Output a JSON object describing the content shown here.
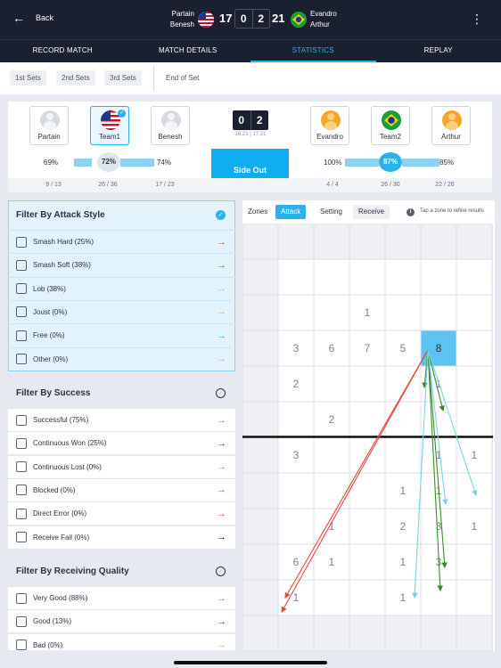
{
  "header": {
    "back_label": "Back",
    "team1_players": [
      "Partain",
      "Benesh"
    ],
    "team2_players": [
      "Evandro",
      "Arthur"
    ],
    "team1_points": "17",
    "team1_sets": "0",
    "team2_sets": "2",
    "team2_points": "21"
  },
  "tabs": [
    "RECORD MATCH",
    "MATCH DETAILS",
    "STATISTICS",
    "REPLAY"
  ],
  "set_filters": [
    "1st Sets",
    "2nd Sets",
    "3rd Sets",
    "End of Set"
  ],
  "players": {
    "left": [
      "Partain",
      "Team1",
      "Benesh"
    ],
    "right": [
      "Evandro",
      "Team2",
      "Arthur"
    ]
  },
  "set_score": {
    "left": "0",
    "right": "2",
    "times": "16:21 | 17:21"
  },
  "side_out": {
    "label": "Side Out",
    "left_pcts": [
      "69%",
      "72%",
      "74%"
    ],
    "right_pcts": [
      "100%",
      "87%",
      "85%"
    ],
    "left_fracs": [
      "9 / 13",
      "26 / 36",
      "17 / 23"
    ],
    "right_fracs": [
      "4 / 4",
      "26 / 30",
      "22 / 26"
    ],
    "levels": {
      "partain": 0.69,
      "team1": 0.72,
      "benesh": 0.74,
      "evandro": 1.0,
      "team2": 0.87,
      "arthur": 0.85
    }
  },
  "filter_attack": {
    "title": "Filter By Attack Style",
    "items": [
      {
        "label": "Smash Hard (25%)",
        "color": "#e8473f"
      },
      {
        "label": "Smash Soft (38%)",
        "color": "#3a8a2a"
      },
      {
        "label": "Lob (38%)",
        "color": "#7fd0e6"
      },
      {
        "label": "Joust (0%)",
        "color": "#f3a62a"
      },
      {
        "label": "Free (0%)",
        "color": "#22b8b0"
      },
      {
        "label": "Other (0%)",
        "color": "#f08cb4"
      }
    ]
  },
  "filter_success": {
    "title": "Filter By Success",
    "items": [
      {
        "label": "Successful (75%)",
        "color": "#3ac24a"
      },
      {
        "label": "Continuous Won (25%)",
        "color": "#2d3a8c"
      },
      {
        "label": "Continuous Lost (0%)",
        "color": "#f08a3a"
      },
      {
        "label": "Blocked (0%)",
        "color": "#a04ab0"
      },
      {
        "label": "Direct Error (0%)",
        "color": "#e8473f"
      },
      {
        "label": "Receive Fail (0%)",
        "color": "#111111"
      }
    ]
  },
  "filter_receiving": {
    "title": "Filter By Receiving Quality",
    "items": [
      {
        "label": "Very Good (88%)",
        "color": "#3ac24a"
      },
      {
        "label": "Good (13%)",
        "color": "#2d3a8c"
      },
      {
        "label": "Bad (0%)",
        "color": "#f3a62a"
      }
    ]
  },
  "court_tabs": [
    "Zones",
    "Attack",
    "Setting",
    "Receive"
  ],
  "court_hint": "Tap a zone to refine results",
  "zone_counts": [
    {
      "row": 2,
      "col": 3,
      "n": "1"
    },
    {
      "row": 3,
      "col": 1,
      "n": "3"
    },
    {
      "row": 3,
      "col": 2,
      "n": "6"
    },
    {
      "row": 3,
      "col": 3,
      "n": "7"
    },
    {
      "row": 3,
      "col": 4,
      "n": "5"
    },
    {
      "row": 3,
      "col": 5,
      "n": "8"
    },
    {
      "row": 4,
      "col": 1,
      "n": "2"
    },
    {
      "row": 4,
      "col": 5,
      "n": "1"
    },
    {
      "row": 5,
      "col": 2,
      "n": "2"
    },
    {
      "row": 6,
      "col": 1,
      "n": "3"
    },
    {
      "row": 6,
      "col": 5,
      "n": "1"
    },
    {
      "row": 6,
      "col": 6,
      "n": "1"
    },
    {
      "row": 7,
      "col": 4,
      "n": "1"
    },
    {
      "row": 7,
      "col": 5,
      "n": "1"
    },
    {
      "row": 8,
      "col": 2,
      "n": "1"
    },
    {
      "row": 8,
      "col": 4,
      "n": "2"
    },
    {
      "row": 8,
      "col": 5,
      "n": "3"
    },
    {
      "row": 8,
      "col": 6,
      "n": "1"
    },
    {
      "row": 9,
      "col": 1,
      "n": "6"
    },
    {
      "row": 9,
      "col": 2,
      "n": "1"
    },
    {
      "row": 9,
      "col": 4,
      "n": "1"
    },
    {
      "row": 9,
      "col": 5,
      "n": "3"
    },
    {
      "row": 10,
      "col": 1,
      "n": "1"
    },
    {
      "row": 10,
      "col": 4,
      "n": "1"
    }
  ],
  "highlight_zone": {
    "row": 3,
    "col": 5
  }
}
